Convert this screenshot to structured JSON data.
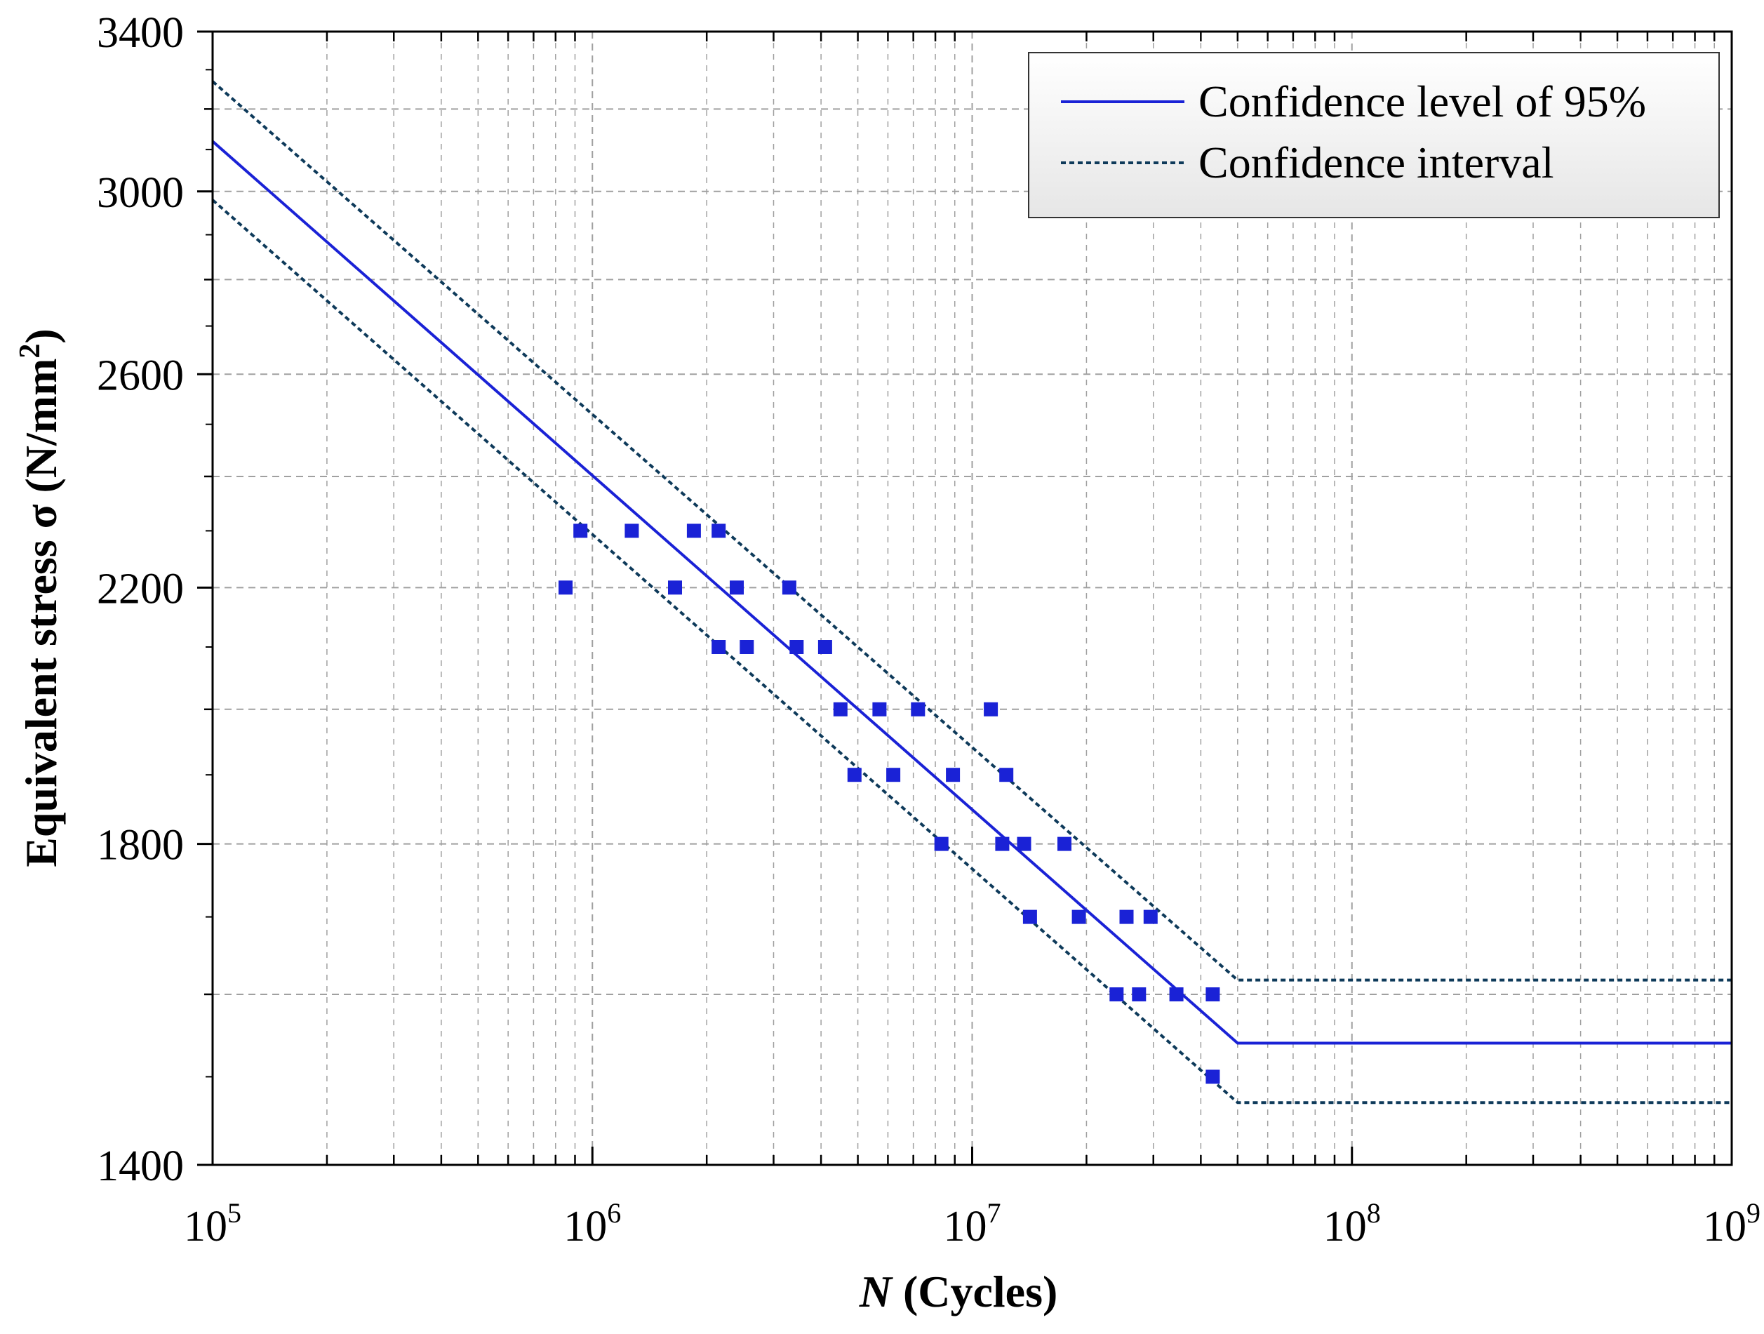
{
  "chart_data": {
    "type": "scatter",
    "title": "",
    "xlabel_italic": "N",
    "xlabel_rest": " (Cycles)",
    "ylabel_main": "Equivalent stress σ (N/mm",
    "ylabel_sup": "2",
    "ylabel_end": ")",
    "x_scale": "log",
    "xlim": [
      100000,
      1000000000
    ],
    "ylim": [
      1400,
      3400
    ],
    "y_scale": "log",
    "x_ticks": [
      {
        "value": 100000,
        "base": "10",
        "exp": "5"
      },
      {
        "value": 1000000,
        "base": "10",
        "exp": "6"
      },
      {
        "value": 10000000,
        "base": "10",
        "exp": "7"
      },
      {
        "value": 100000000,
        "base": "10",
        "exp": "8"
      },
      {
        "value": 1000000000,
        "base": "10",
        "exp": "9"
      }
    ],
    "y_ticks": [
      {
        "value": 1400,
        "label": "1400"
      },
      {
        "value": 1800,
        "label": "1800"
      },
      {
        "value": 2200,
        "label": "2200"
      },
      {
        "value": 2600,
        "label": "2600"
      },
      {
        "value": 3000,
        "label": "3000"
      },
      {
        "value": 3400,
        "label": "3400"
      }
    ],
    "y_minor_grid": [
      1600,
      2000,
      2400,
      2800,
      3200
    ],
    "grid": true,
    "legend_position": "top-right",
    "series": [
      {
        "name": "Confidence level of 95%",
        "kind": "line",
        "style": "solid",
        "color": "#1a22d6",
        "points": [
          [
            100000,
            3120
          ],
          [
            50000000,
            1540
          ],
          [
            1000000000,
            1540
          ]
        ]
      },
      {
        "name": "Confidence interval",
        "kind": "line",
        "style": "dotted",
        "color": "#0e3a5a",
        "points": [
          [
            100000,
            3270
          ],
          [
            50000000,
            1618
          ],
          [
            1000000000,
            1618
          ]
        ]
      },
      {
        "name": "Confidence interval (lower)",
        "kind": "line",
        "style": "dotted",
        "color": "#0e3a5a",
        "legend": false,
        "points": [
          [
            100000,
            2980
          ],
          [
            50000000,
            1470
          ],
          [
            1000000000,
            1470
          ]
        ]
      },
      {
        "name": "Test data",
        "kind": "scatter",
        "marker": "square",
        "color": "#1a22d6",
        "points": [
          [
            850000,
            2200
          ],
          [
            930000,
            2300
          ],
          [
            1270000,
            2300
          ],
          [
            1650000,
            2200
          ],
          [
            1850000,
            2300
          ],
          [
            2150000,
            2300
          ],
          [
            2150000,
            2100
          ],
          [
            2400000,
            2200
          ],
          [
            2550000,
            2100
          ],
          [
            3300000,
            2200
          ],
          [
            3450000,
            2100
          ],
          [
            4100000,
            2100
          ],
          [
            4500000,
            2000
          ],
          [
            4900000,
            1900
          ],
          [
            5700000,
            2000
          ],
          [
            6200000,
            1900
          ],
          [
            7200000,
            2000
          ],
          [
            8300000,
            1800
          ],
          [
            8900000,
            1900
          ],
          [
            11200000,
            2000
          ],
          [
            12000000,
            1800
          ],
          [
            12300000,
            1900
          ],
          [
            13700000,
            1800
          ],
          [
            14200000,
            1700
          ],
          [
            17500000,
            1800
          ],
          [
            19100000,
            1700
          ],
          [
            24000000,
            1600
          ],
          [
            25500000,
            1700
          ],
          [
            27500000,
            1600
          ],
          [
            29500000,
            1700
          ],
          [
            34500000,
            1600
          ],
          [
            43000000,
            1600
          ],
          [
            43000000,
            1500
          ]
        ]
      }
    ]
  },
  "legend": {
    "items": [
      {
        "label": "Confidence level of 95%"
      },
      {
        "label": "Confidence interval"
      }
    ]
  },
  "colors": {
    "main_line": "#1a22d6",
    "interval_line": "#0e3a5a",
    "marker": "#1a22d6",
    "grid": "#a0a0a0"
  }
}
